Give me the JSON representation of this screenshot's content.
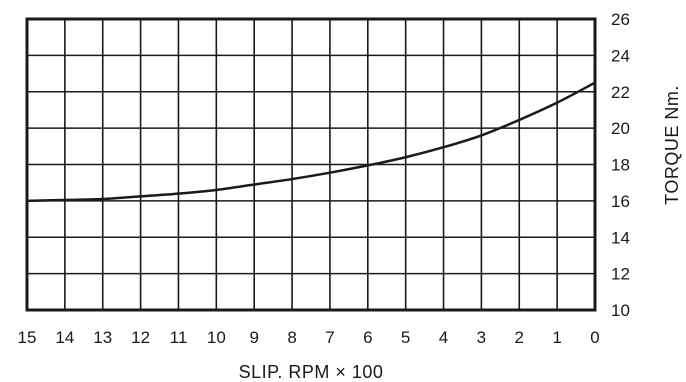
{
  "chart_data": {
    "type": "line",
    "title": "",
    "xlabel": "SLIP. RPM × 100",
    "ylabel": "TORQUE Nm.",
    "x_reversed": true,
    "xlim": [
      0,
      15
    ],
    "ylim": [
      10,
      26
    ],
    "x_ticks": [
      "15",
      "14",
      "13",
      "12",
      "11",
      "10",
      "9",
      "8",
      "7",
      "6",
      "5",
      "4",
      "3",
      "2",
      "1",
      "0"
    ],
    "y_ticks": [
      "26",
      "24",
      "22",
      "20",
      "18",
      "16",
      "14",
      "12",
      "10"
    ],
    "grid": true,
    "legend": "none",
    "series": [
      {
        "x": [
          15,
          14,
          13,
          12,
          11,
          10,
          9,
          8,
          7,
          6,
          5,
          4,
          3,
          2,
          1,
          0
        ],
        "y": [
          16.0,
          16.05,
          16.1,
          16.25,
          16.4,
          16.6,
          16.9,
          17.2,
          17.55,
          17.95,
          18.4,
          18.95,
          19.6,
          20.45,
          21.4,
          22.5
        ]
      }
    ],
    "colors": {
      "line": "#1a1a1a",
      "grid": "#1a1a1a",
      "background": "#ffffff"
    }
  }
}
